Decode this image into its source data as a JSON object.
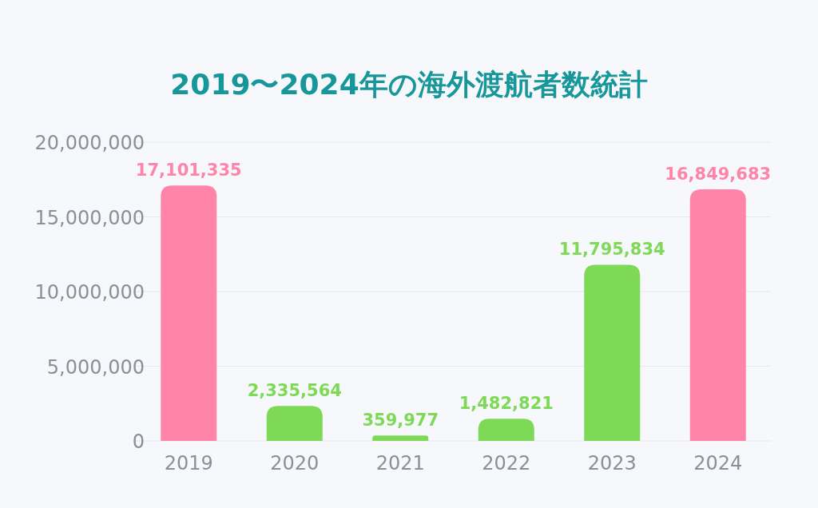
{
  "chart_data": {
    "type": "bar",
    "title": "2019〜2024年の海外渡航者数統計",
    "categories": [
      "2019",
      "2020",
      "2021",
      "2022",
      "2023",
      "2024"
    ],
    "values": [
      17101335,
      2335564,
      359977,
      1482821,
      11795834,
      16849683
    ],
    "colors": [
      "#ff85a8",
      "#7ed957",
      "#7ed957",
      "#7ed957",
      "#7ed957",
      "#ff85a8"
    ],
    "value_labels": [
      "17,101,335",
      "2,335,564",
      "359,977",
      "1,482,821",
      "11,795,834",
      "16,849,683"
    ],
    "ylim": [
      0,
      20000000
    ],
    "yticks": [
      0,
      {
        "value": 5000000,
        "label": "5,000,000"
      },
      {
        "value": 10000000,
        "label": "10,000,000"
      },
      {
        "value": 15000000,
        "label": "15,000,000"
      },
      {
        "value": 20000000,
        "label": "20,000,000"
      }
    ],
    "grid": "y"
  }
}
